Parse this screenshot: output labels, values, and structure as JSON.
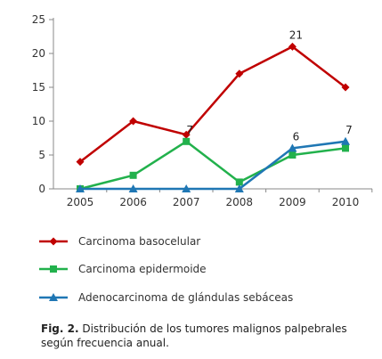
{
  "chart_data": {
    "type": "line",
    "x": [
      "2005",
      "2006",
      "2007",
      "2008",
      "2009",
      "2010"
    ],
    "ylim": [
      0,
      25
    ],
    "yticks": [
      0,
      5,
      10,
      15,
      20,
      25
    ],
    "grid": false,
    "legend_placement": "bottom",
    "series": [
      {
        "name": "Carcinoma basocelular",
        "values": [
          4,
          10,
          8,
          17,
          21,
          15
        ],
        "color": "#c00000",
        "marker": "diamond"
      },
      {
        "name": "Carcinoma epidermoide",
        "values": [
          0,
          2,
          7,
          1,
          5,
          6
        ],
        "color": "#22b14c",
        "marker": "square"
      },
      {
        "name": "Adenocarcinoma de glándulas sebáceas",
        "values": [
          0,
          0,
          0,
          0,
          6,
          7
        ],
        "color": "#1f77b4",
        "marker": "triangle"
      }
    ],
    "annotations": [
      {
        "text": "21",
        "x": "2009",
        "y": 21
      },
      {
        "text": "7",
        "x": "2007",
        "y": 7
      },
      {
        "text": "6",
        "x": "2009",
        "y": 6
      },
      {
        "text": "7",
        "x": "2010",
        "y": 7
      }
    ]
  },
  "caption": {
    "label": "Fig. 2.",
    "text": " Distribución de los tumores malignos palpebrales según frecuencia anual."
  }
}
